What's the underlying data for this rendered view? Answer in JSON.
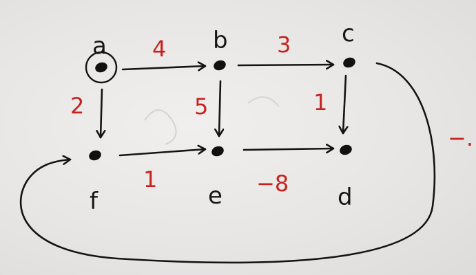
{
  "graph": {
    "source_node": "a",
    "colors": {
      "ink": "#141414",
      "weight": "#c8221e",
      "paper": "#ebe9e8"
    },
    "nodes": [
      {
        "id": "a",
        "label": "a"
      },
      {
        "id": "b",
        "label": "b"
      },
      {
        "id": "c",
        "label": "c"
      },
      {
        "id": "d",
        "label": "d"
      },
      {
        "id": "e",
        "label": "e"
      },
      {
        "id": "f",
        "label": "f"
      }
    ],
    "edges": [
      {
        "from": "a",
        "to": "b",
        "weight": "4"
      },
      {
        "from": "b",
        "to": "c",
        "weight": "3"
      },
      {
        "from": "a",
        "to": "f",
        "weight": "2"
      },
      {
        "from": "b",
        "to": "e",
        "weight": "5"
      },
      {
        "from": "c",
        "to": "d",
        "weight": "1"
      },
      {
        "from": "f",
        "to": "e",
        "weight": "1"
      },
      {
        "from": "e",
        "to": "d",
        "weight": "−8"
      },
      {
        "from": "c",
        "to": "f",
        "weight": "−."
      }
    ]
  }
}
